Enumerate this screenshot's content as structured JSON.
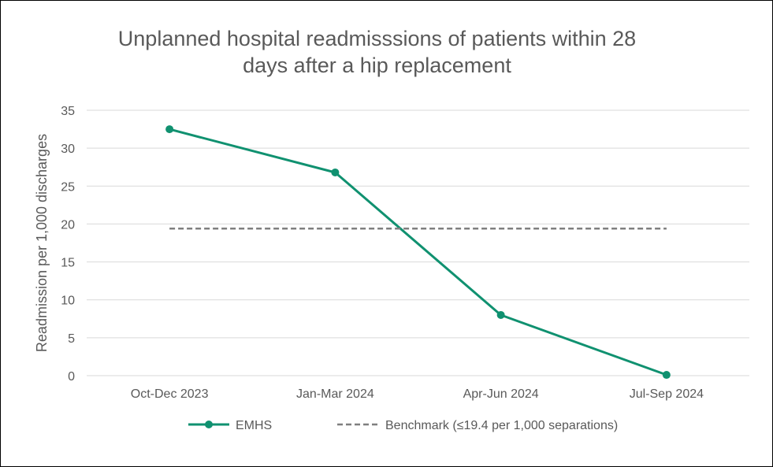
{
  "chart_data": {
    "type": "line",
    "title_lines": [
      "Unplanned hospital readmisssions of patients within 28",
      "days after a hip replacement"
    ],
    "ylabel": "Readmission per 1,000 discharges",
    "xlabel": "",
    "categories": [
      "Oct-Dec 2023",
      "Jan-Mar 2024",
      "Apr-Jun 2024",
      "Jul-Sep 2024"
    ],
    "ylim": [
      0,
      35
    ],
    "yticks": [
      0,
      5,
      10,
      15,
      20,
      25,
      30,
      35
    ],
    "grid": true,
    "legend_position": "bottom",
    "series": [
      {
        "name": "EMHS",
        "values": [
          32.5,
          26.8,
          8.0,
          0.1
        ],
        "color": "#109170",
        "style": "solid-markers"
      },
      {
        "name": "Benchmark (≤19.4 per 1,000 separations)",
        "values": [
          19.4,
          19.4,
          19.4,
          19.4
        ],
        "color": "#7f7f7f",
        "style": "dashed"
      }
    ]
  }
}
